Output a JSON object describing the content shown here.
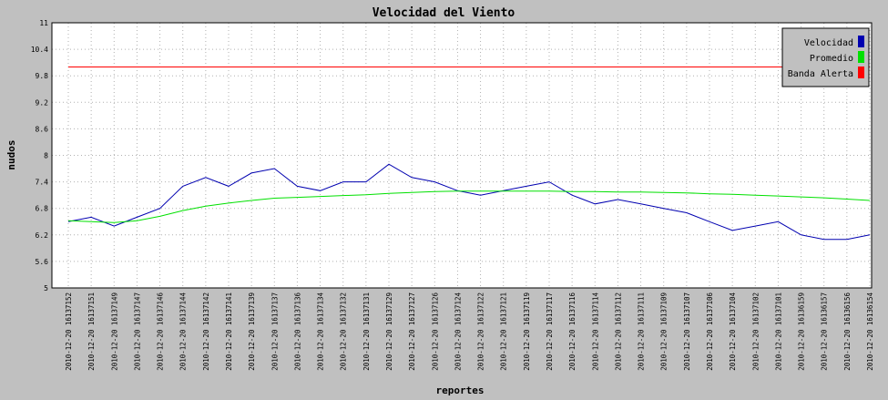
{
  "chart_data": {
    "type": "line",
    "title": "Velocidad del Viento",
    "xlabel": "reportes",
    "ylabel": "nudos",
    "ylim": [
      5,
      11
    ],
    "yticks": [
      "5",
      "5.6",
      "6.2",
      "6.8",
      "7.4",
      "8",
      "8.6",
      "9.2",
      "9.8",
      "10.4",
      "11"
    ],
    "grid": true,
    "legend_position": "top-right",
    "categories": [
      "2010-12-20 16137152",
      "2010-12-20 16137151",
      "2010-12-20 16137149",
      "2010-12-20 16137147",
      "2010-12-20 16137146",
      "2010-12-20 16137144",
      "2010-12-20 16137142",
      "2010-12-20 16137141",
      "2010-12-20 16137139",
      "2010-12-20 16137137",
      "2010-12-20 16137136",
      "2010-12-20 16137134",
      "2010-12-20 16137132",
      "2010-12-20 16137131",
      "2010-12-20 16137129",
      "2010-12-20 16137127",
      "2010-12-20 16137126",
      "2010-12-20 16137124",
      "2010-12-20 16137122",
      "2010-12-20 16137121",
      "2010-12-20 16137119",
      "2010-12-20 16137117",
      "2010-12-20 16137116",
      "2010-12-20 16137114",
      "2010-12-20 16137112",
      "2010-12-20 16137111",
      "2010-12-20 16137109",
      "2010-12-20 16137107",
      "2010-12-20 16137106",
      "2010-12-20 16137104",
      "2010-12-20 16137102",
      "2010-12-20 16137101",
      "2010-12-20 16136159",
      "2010-12-20 16136157",
      "2010-12-20 16136156",
      "2010-12-20 16136154"
    ],
    "series": [
      {
        "name": "Velocidad",
        "color": "#0000b0",
        "values": [
          6.5,
          6.6,
          6.4,
          6.6,
          6.8,
          7.3,
          7.5,
          7.3,
          7.6,
          7.7,
          7.3,
          7.2,
          7.4,
          7.4,
          7.8,
          7.5,
          7.4,
          7.2,
          7.1,
          7.2,
          7.3,
          7.4,
          7.1,
          6.9,
          7.0,
          6.9,
          6.8,
          6.7,
          6.5,
          6.3,
          6.4,
          6.5,
          6.2,
          6.1,
          6.1,
          6.2
        ]
      },
      {
        "name": "Promedio",
        "color": "#00e000",
        "values": [
          6.52,
          6.5,
          6.48,
          6.52,
          6.62,
          6.75,
          6.85,
          6.92,
          6.98,
          7.03,
          7.05,
          7.07,
          7.09,
          7.11,
          7.14,
          7.16,
          7.18,
          7.19,
          7.19,
          7.19,
          7.19,
          7.19,
          7.18,
          7.18,
          7.17,
          7.17,
          7.16,
          7.15,
          7.13,
          7.12,
          7.1,
          7.08,
          7.06,
          7.04,
          7.01,
          6.98
        ]
      },
      {
        "name": "Banda Alerta",
        "color": "#ff0000",
        "values": [
          10.0,
          10.0,
          10.0,
          10.0,
          10.0,
          10.0,
          10.0,
          10.0,
          10.0,
          10.0,
          10.0,
          10.0,
          10.0,
          10.0,
          10.0,
          10.0,
          10.0,
          10.0,
          10.0,
          10.0,
          10.0,
          10.0,
          10.0,
          10.0,
          10.0,
          10.0,
          10.0,
          10.0,
          10.0,
          10.0,
          10.0,
          10.0,
          10.0,
          10.0,
          10.0,
          10.0
        ]
      }
    ]
  }
}
